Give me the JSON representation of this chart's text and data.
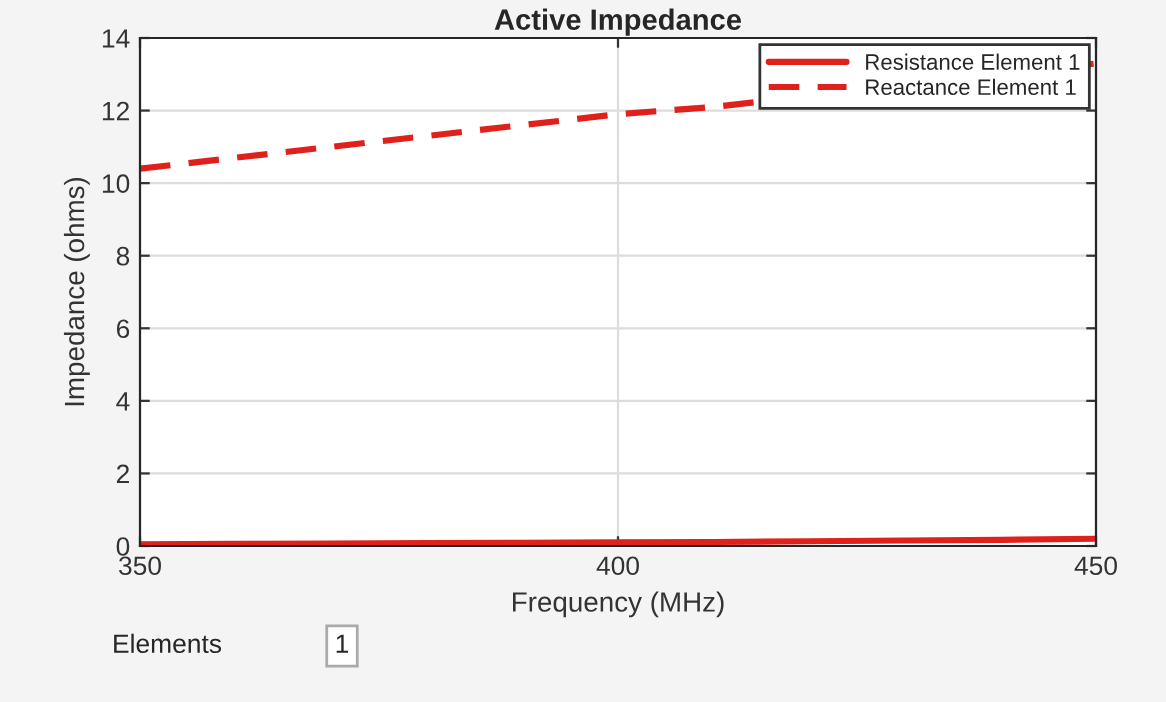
{
  "chart_data": {
    "type": "line",
    "title": "Active Impedance",
    "xlabel": "Frequency (MHz)",
    "ylabel": "Impedance (ohms)",
    "x": [
      350,
      360,
      370,
      380,
      390,
      400,
      410,
      420,
      430,
      440,
      450
    ],
    "series": [
      {
        "name": "Resistance Element 1",
        "color": "#e0201b",
        "line_style": "solid",
        "values": [
          0.05,
          0.06,
          0.07,
          0.08,
          0.09,
          0.1,
          0.11,
          0.13,
          0.15,
          0.17,
          0.2
        ]
      },
      {
        "name": "Reactance Element 1",
        "color": "#e0201b",
        "line_style": "dashed",
        "values": [
          10.4,
          10.7,
          11.0,
          11.3,
          11.6,
          11.9,
          12.1,
          null,
          null,
          null,
          13.3
        ]
      }
    ],
    "xlim": [
      350,
      450
    ],
    "xticks": [
      350,
      400,
      450
    ],
    "ylim": [
      0,
      14
    ],
    "yticks": [
      0,
      2,
      4,
      6,
      8,
      10,
      12,
      14
    ],
    "grid": true,
    "legend": "top right",
    "annotations": [
      "Elements",
      "1"
    ]
  }
}
